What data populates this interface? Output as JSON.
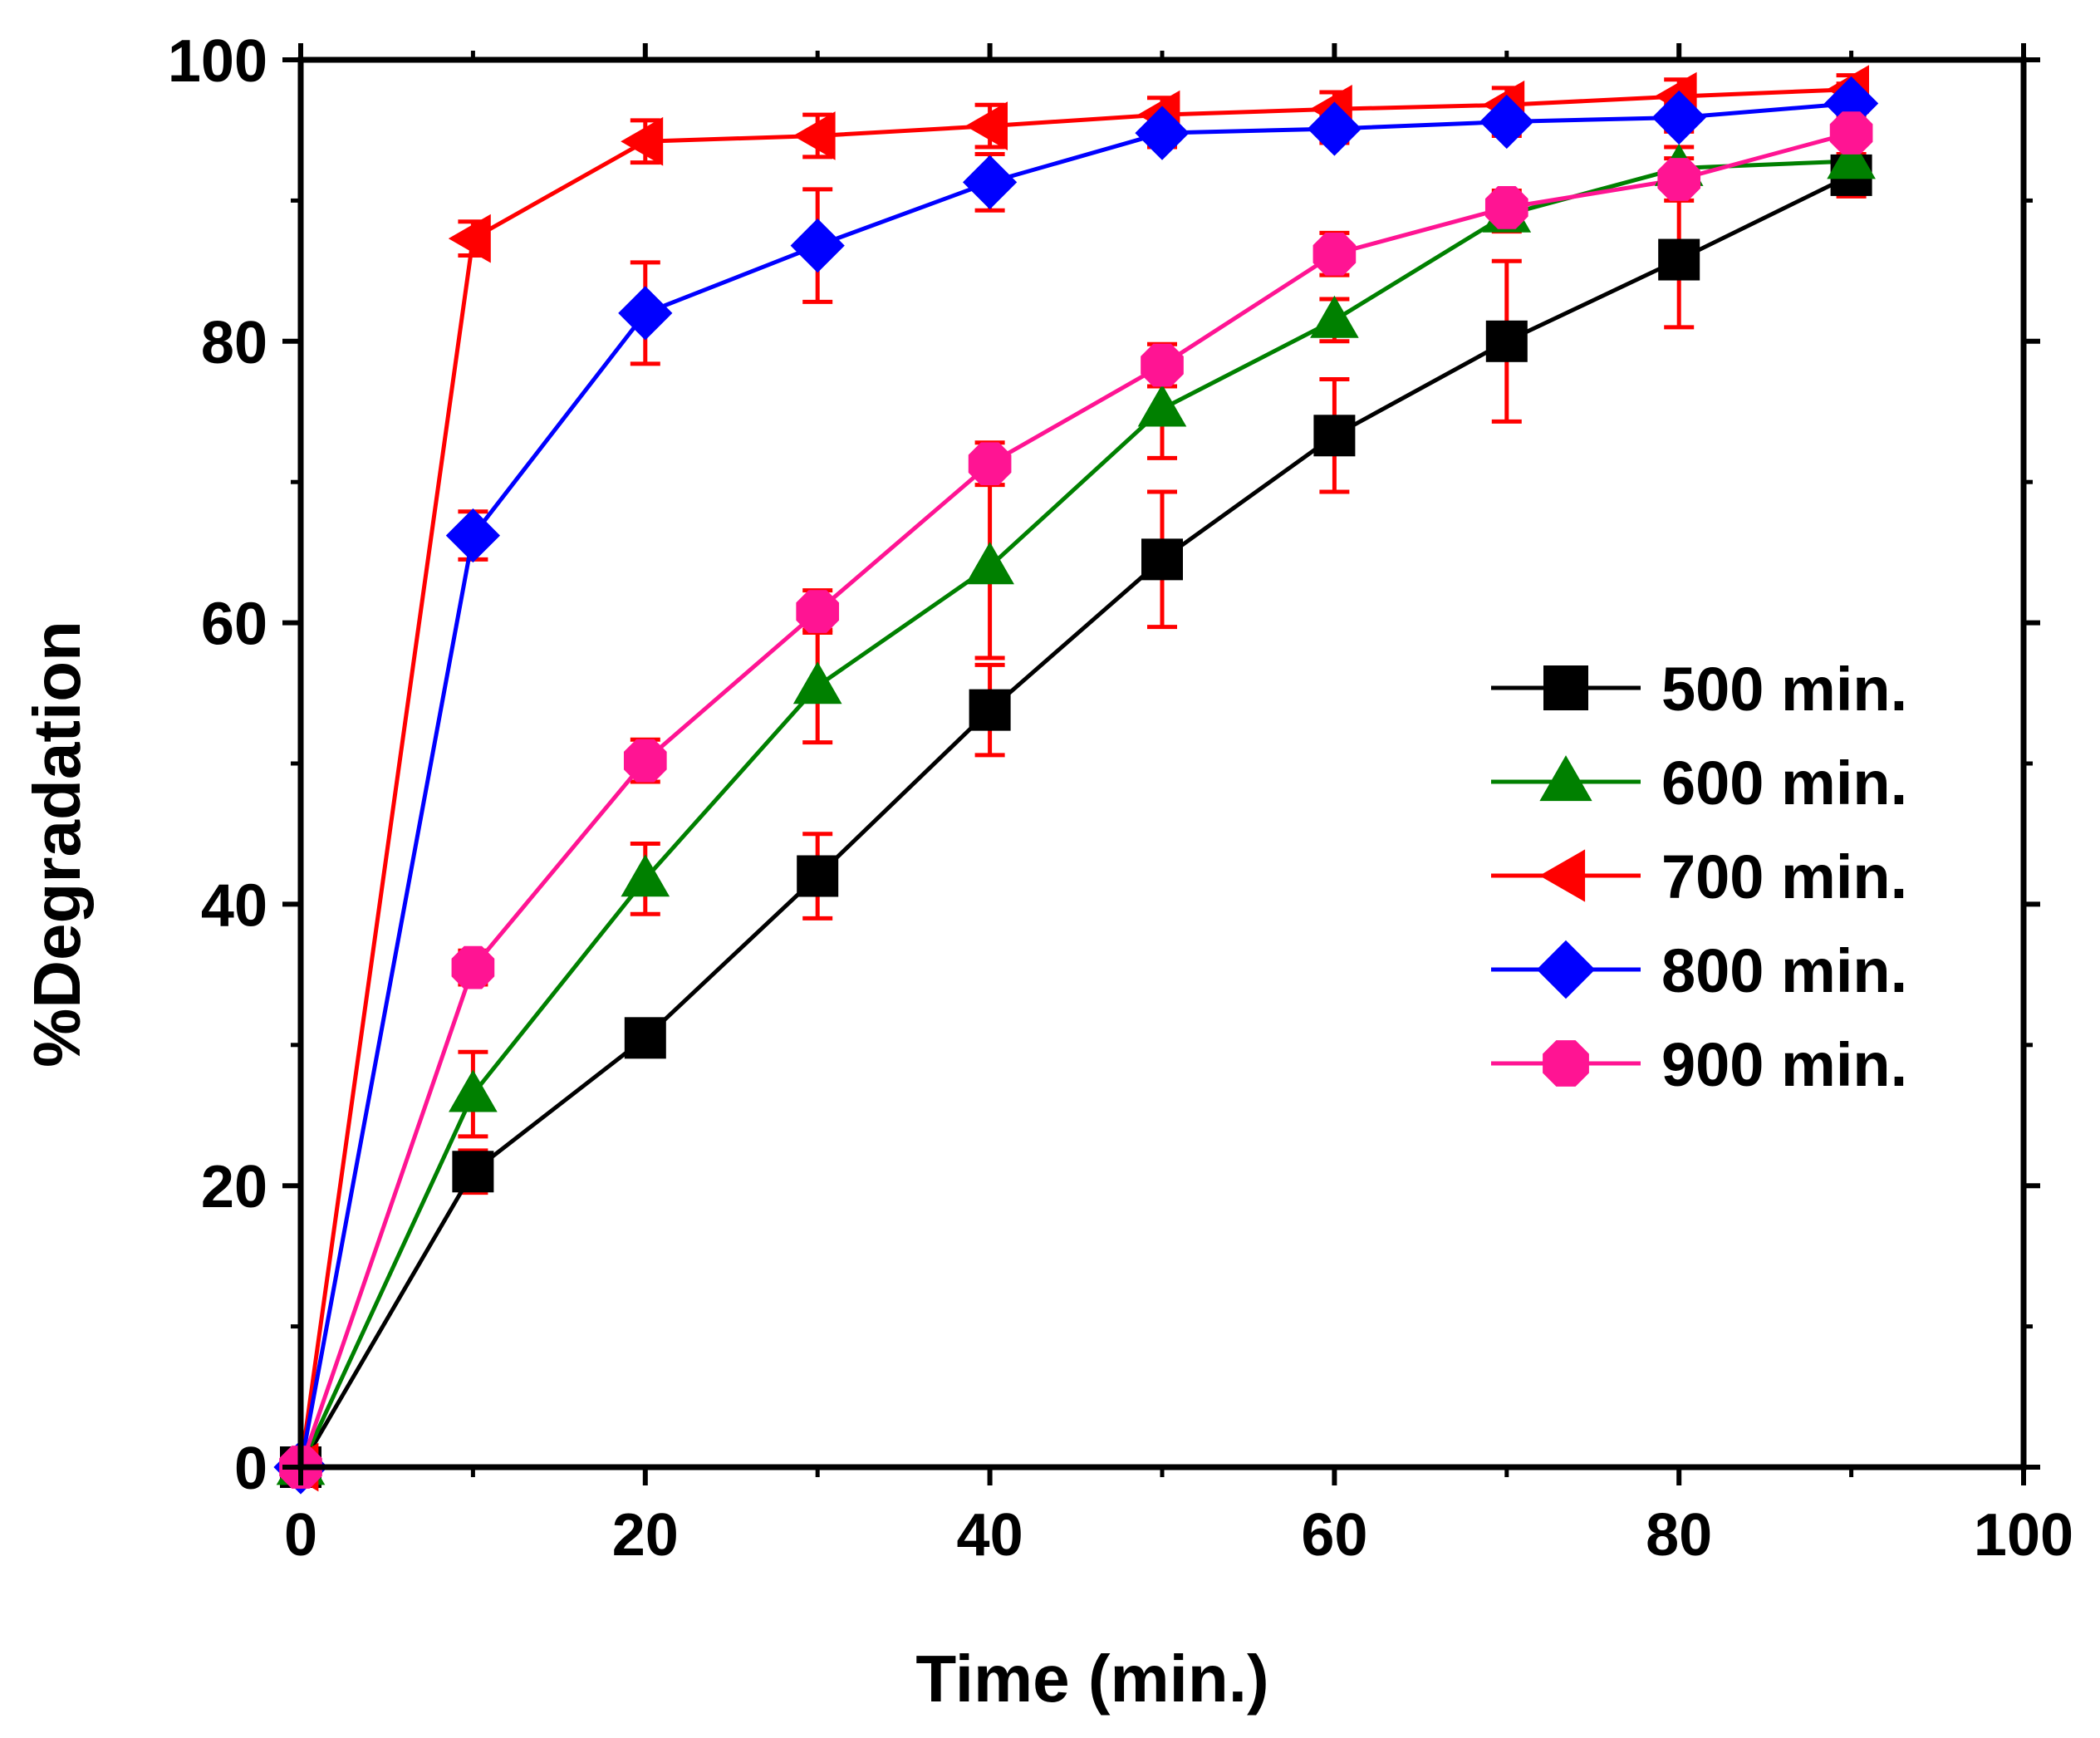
{
  "chart_data": {
    "type": "line",
    "title": "",
    "xlabel": "Time (min.)",
    "ylabel": "%Degradation",
    "xlim": [
      0,
      100
    ],
    "ylim": [
      0,
      100
    ],
    "xticks": [
      0,
      20,
      40,
      60,
      80,
      100
    ],
    "yticks": [
      0,
      20,
      40,
      60,
      80,
      100
    ],
    "grid": false,
    "legend_position": "right-center",
    "x": [
      0,
      10,
      20,
      30,
      40,
      50,
      60,
      70,
      80,
      90
    ],
    "series": [
      {
        "name": "500 min.",
        "marker": "square",
        "color": "#000000",
        "values": [
          0,
          21,
          30.5,
          42,
          53.8,
          64.5,
          73.3,
          80,
          85.8,
          91.8
        ],
        "errors": [
          0,
          1.5,
          1.3,
          3,
          3.2,
          4.8,
          4,
          5.7,
          4.8,
          1.5
        ]
      },
      {
        "name": "600 min.",
        "marker": "triangle-up",
        "color": "#008000",
        "values": [
          0,
          26.5,
          41.8,
          55.5,
          64,
          75.2,
          81.5,
          89,
          92.3,
          92.8
        ],
        "errors": [
          0,
          3,
          2.5,
          4,
          6.5,
          3.5,
          1.5,
          1.2,
          1.5,
          1.5
        ]
      },
      {
        "name": "700 min.",
        "marker": "triangle-left",
        "color": "#ff0000",
        "values": [
          0,
          87.3,
          94.2,
          94.6,
          95.3,
          96.1,
          96.5,
          96.8,
          97.4,
          97.9
        ],
        "errors": [
          0,
          1.2,
          1.5,
          1.5,
          1.5,
          1.2,
          1.2,
          1.2,
          1.2,
          1
        ]
      },
      {
        "name": "800 min.",
        "marker": "diamond",
        "color": "#0000ff",
        "values": [
          0,
          66.2,
          82,
          86.8,
          91.3,
          94.8,
          95.1,
          95.6,
          95.9,
          96.9
        ],
        "errors": [
          0,
          1.7,
          3.6,
          4,
          2,
          1,
          1,
          1,
          1,
          1
        ]
      },
      {
        "name": "900 min.",
        "marker": "octagon",
        "color": "#ff1493",
        "values": [
          0,
          35.5,
          50.2,
          60.8,
          71.3,
          78.3,
          86.2,
          89.5,
          91.5,
          94.8
        ],
        "errors": [
          0,
          1.2,
          1.5,
          1.5,
          1.5,
          1.5,
          1.5,
          1.2,
          1.5,
          3.5
        ]
      }
    ]
  }
}
